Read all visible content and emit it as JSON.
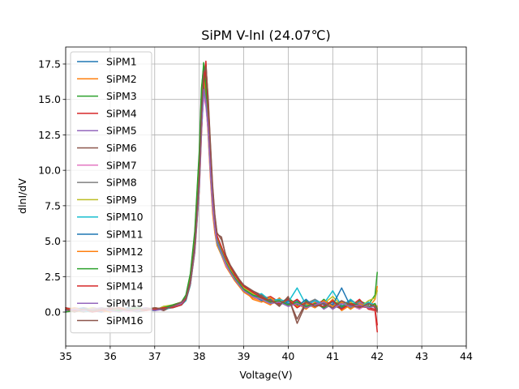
{
  "chart_data": {
    "type": "line",
    "title": "SiPM V-lnI (24.07℃)",
    "xlabel": "Voltage(V)",
    "ylabel": "dlnI/dV",
    "xlim": [
      35,
      44
    ],
    "ylim": [
      -2.4,
      18.7
    ],
    "xticks": [
      35,
      36,
      37,
      38,
      39,
      40,
      41,
      42,
      43,
      44
    ],
    "yticks": [
      0.0,
      2.5,
      5.0,
      7.5,
      10.0,
      12.5,
      15.0,
      17.5
    ],
    "xtick_labels": [
      "35",
      "36",
      "37",
      "38",
      "39",
      "40",
      "41",
      "42",
      "43",
      "44"
    ],
    "ytick_labels": [
      "0.0",
      "2.5",
      "5.0",
      "7.5",
      "10.0",
      "12.5",
      "15.0",
      "17.5"
    ],
    "grid": true,
    "legend_position": "upper-left",
    "x": [
      35.0,
      35.2,
      35.4,
      35.6,
      35.8,
      36.0,
      36.2,
      36.4,
      36.6,
      36.8,
      37.0,
      37.2,
      37.4,
      37.6,
      37.7,
      37.8,
      37.9,
      38.0,
      38.05,
      38.1,
      38.15,
      38.2,
      38.25,
      38.3,
      38.35,
      38.4,
      38.5,
      38.6,
      38.7,
      38.8,
      38.9,
      39.0,
      39.2,
      39.4,
      39.6,
      39.8,
      40.0,
      40.2,
      40.4,
      40.6,
      40.8,
      41.0,
      41.2,
      41.4,
      41.6,
      41.8,
      41.95,
      42.0
    ],
    "series": [
      {
        "name": "SiPM1",
        "color": "#1f77b4",
        "values": [
          0.1,
          0.0,
          0.2,
          0.1,
          0.2,
          0.1,
          0.2,
          0.3,
          0.1,
          0.2,
          0.2,
          0.3,
          0.4,
          0.6,
          0.9,
          2.0,
          4.5,
          9.0,
          13.5,
          16.8,
          15.5,
          13.0,
          10.0,
          7.5,
          6.0,
          5.0,
          4.2,
          3.5,
          3.0,
          2.4,
          2.0,
          1.6,
          1.2,
          1.0,
          0.7,
          0.9,
          0.6,
          0.8,
          0.4,
          0.9,
          0.5,
          0.7,
          0.3,
          0.8,
          0.5,
          0.6,
          0.4,
          0.1
        ]
      },
      {
        "name": "SiPM2",
        "color": "#ff7f0e",
        "values": [
          0.3,
          0.1,
          0.0,
          0.2,
          0.1,
          0.3,
          0.1,
          0.2,
          0.2,
          0.1,
          0.3,
          0.2,
          0.5,
          0.7,
          1.0,
          2.3,
          5.0,
          10.0,
          14.5,
          17.2,
          15.0,
          12.5,
          9.5,
          7.0,
          5.6,
          4.7,
          4.0,
          3.2,
          2.7,
          2.2,
          1.8,
          1.4,
          1.0,
          0.8,
          0.5,
          1.0,
          0.4,
          0.6,
          0.2,
          0.7,
          0.3,
          0.9,
          0.1,
          0.5,
          0.7,
          0.3,
          0.9,
          1.8
        ]
      },
      {
        "name": "SiPM3",
        "color": "#2ca02c",
        "values": [
          0.0,
          0.2,
          0.1,
          0.0,
          0.3,
          0.2,
          0.1,
          0.1,
          0.3,
          0.2,
          0.1,
          0.4,
          0.3,
          0.5,
          1.1,
          2.6,
          5.5,
          11.0,
          15.5,
          17.6,
          16.0,
          13.5,
          10.5,
          8.0,
          6.2,
          5.2,
          4.4,
          3.6,
          2.9,
          2.5,
          2.1,
          1.7,
          1.3,
          1.1,
          0.8,
          0.6,
          1.0,
          0.5,
          0.8,
          0.3,
          0.9,
          0.4,
          0.7,
          0.2,
          0.8,
          0.5,
          1.2,
          2.8
        ]
      },
      {
        "name": "SiPM4",
        "color": "#d62728",
        "values": [
          0.2,
          0.1,
          0.3,
          0.2,
          0.0,
          0.1,
          0.3,
          0.2,
          0.1,
          0.3,
          0.2,
          0.2,
          0.4,
          0.6,
          0.8,
          1.9,
          4.2,
          8.5,
          12.5,
          15.8,
          17.0,
          14.0,
          11.0,
          8.2,
          6.4,
          5.3,
          4.5,
          3.7,
          3.1,
          2.6,
          2.2,
          1.8,
          1.4,
          0.9,
          1.1,
          0.7,
          0.5,
          0.9,
          0.3,
          0.6,
          0.8,
          0.2,
          0.7,
          0.4,
          0.9,
          0.2,
          0.1,
          -1.4
        ]
      },
      {
        "name": "SiPM5",
        "color": "#9467bd",
        "values": [
          0.1,
          0.3,
          0.2,
          0.1,
          0.2,
          0.0,
          0.2,
          0.1,
          0.2,
          0.3,
          0.1,
          0.3,
          0.3,
          0.7,
          1.0,
          2.1,
          4.6,
          9.2,
          13.0,
          15.5,
          14.8,
          13.2,
          10.2,
          7.8,
          6.1,
          5.1,
          4.3,
          3.4,
          2.8,
          2.3,
          1.9,
          1.5,
          1.1,
          0.9,
          0.6,
          0.8,
          0.5,
          0.7,
          0.4,
          0.8,
          0.2,
          0.6,
          0.5,
          0.3,
          0.7,
          0.4,
          0.6,
          0.3
        ]
      },
      {
        "name": "SiPM6",
        "color": "#8c564b",
        "values": [
          0.2,
          0.2,
          0.1,
          0.3,
          0.2,
          0.2,
          0.0,
          0.3,
          0.2,
          0.1,
          0.3,
          0.1,
          0.4,
          0.5,
          0.9,
          2.2,
          4.8,
          9.5,
          14.0,
          16.5,
          17.5,
          15.0,
          11.8,
          8.8,
          6.8,
          5.5,
          5.3,
          3.9,
          3.2,
          2.7,
          2.3,
          1.9,
          1.5,
          1.2,
          0.9,
          0.4,
          1.1,
          -0.8,
          0.6,
          0.3,
          0.8,
          0.5,
          0.2,
          0.9,
          0.4,
          0.7,
          0.3,
          0.0
        ]
      },
      {
        "name": "SiPM7",
        "color": "#e377c2",
        "values": [
          0.0,
          0.1,
          0.2,
          0.2,
          0.1,
          0.3,
          0.2,
          0.0,
          0.1,
          0.2,
          0.2,
          0.3,
          0.3,
          0.6,
          0.9,
          2.0,
          4.4,
          8.8,
          12.8,
          15.2,
          14.5,
          12.8,
          9.8,
          7.4,
          5.9,
          4.9,
          4.1,
          3.3,
          2.8,
          2.3,
          1.9,
          1.5,
          1.1,
          0.8,
          0.7,
          0.9,
          0.4,
          0.6,
          0.5,
          0.4,
          0.7,
          0.3,
          0.6,
          0.5,
          0.2,
          0.6,
          0.4,
          0.2
        ]
      },
      {
        "name": "SiPM8",
        "color": "#7f7f7f",
        "values": [
          0.3,
          0.2,
          0.0,
          0.1,
          0.3,
          0.1,
          0.2,
          0.2,
          0.0,
          0.1,
          0.3,
          0.2,
          0.4,
          0.6,
          1.0,
          2.2,
          4.7,
          9.3,
          13.6,
          16.0,
          15.2,
          13.4,
          10.4,
          7.9,
          6.1,
          5.0,
          4.2,
          3.5,
          2.9,
          2.4,
          2.0,
          1.6,
          1.2,
          1.0,
          0.6,
          0.7,
          0.8,
          0.4,
          0.6,
          0.9,
          0.3,
          0.5,
          0.8,
          0.3,
          0.6,
          0.4,
          0.5,
          0.2
        ]
      },
      {
        "name": "SiPM9",
        "color": "#bcbd22",
        "values": [
          0.1,
          0.0,
          0.2,
          0.3,
          0.1,
          0.2,
          0.3,
          0.1,
          0.2,
          0.2,
          0.1,
          0.4,
          0.5,
          0.7,
          1.1,
          2.4,
          5.1,
          10.2,
          14.8,
          16.9,
          15.6,
          13.6,
          10.6,
          8.1,
          6.3,
          5.2,
          4.4,
          3.6,
          3.0,
          2.5,
          2.0,
          1.7,
          1.3,
          0.9,
          1.0,
          0.6,
          0.9,
          0.3,
          0.7,
          0.5,
          0.6,
          1.1,
          0.4,
          0.7,
          0.3,
          0.8,
          1.0,
          1.5
        ]
      },
      {
        "name": "SiPM10",
        "color": "#17becf",
        "values": [
          0.2,
          0.1,
          0.1,
          0.0,
          0.2,
          0.3,
          0.1,
          0.2,
          0.3,
          0.1,
          0.2,
          0.2,
          0.3,
          0.5,
          0.8,
          1.9,
          4.3,
          8.7,
          12.9,
          15.6,
          14.9,
          13.1,
          10.1,
          7.7,
          6.0,
          4.9,
          4.1,
          3.4,
          2.8,
          2.3,
          1.9,
          1.5,
          1.1,
          1.3,
          0.8,
          0.9,
          0.7,
          1.7,
          0.5,
          0.8,
          0.6,
          1.5,
          0.4,
          0.9,
          0.3,
          0.7,
          0.5,
          0.4
        ]
      },
      {
        "name": "SiPM11",
        "color": "#1f77b4",
        "values": [
          0.1,
          0.2,
          0.3,
          0.1,
          0.0,
          0.2,
          0.2,
          0.3,
          0.1,
          0.2,
          0.1,
          0.3,
          0.4,
          0.6,
          0.9,
          2.1,
          4.6,
          9.1,
          13.3,
          15.9,
          15.0,
          13.2,
          10.3,
          7.8,
          6.1,
          5.0,
          4.2,
          3.5,
          2.9,
          2.4,
          2.0,
          1.6,
          1.2,
          0.8,
          0.9,
          0.5,
          0.8,
          0.4,
          0.9,
          0.3,
          0.7,
          0.5,
          1.7,
          0.4,
          0.6,
          0.3,
          0.5,
          0.2
        ]
      },
      {
        "name": "SiPM12",
        "color": "#ff7f0e",
        "values": [
          0.2,
          0.3,
          0.1,
          0.2,
          0.1,
          0.0,
          0.3,
          0.2,
          0.2,
          0.1,
          0.3,
          0.2,
          0.4,
          0.6,
          1.0,
          2.3,
          4.9,
          9.7,
          14.2,
          16.6,
          15.4,
          13.3,
          10.3,
          7.9,
          6.2,
          5.1,
          4.3,
          3.5,
          2.9,
          2.4,
          2.0,
          1.6,
          0.9,
          0.7,
          1.0,
          0.5,
          0.9,
          0.4,
          0.6,
          0.3,
          0.8,
          0.4,
          0.7,
          0.2,
          0.6,
          0.3,
          0.5,
          0.4
        ]
      },
      {
        "name": "SiPM13",
        "color": "#2ca02c",
        "values": [
          0.0,
          0.1,
          0.2,
          0.1,
          0.2,
          0.1,
          0.1,
          0.2,
          0.3,
          0.2,
          0.2,
          0.3,
          0.5,
          0.7,
          1.2,
          2.7,
          5.7,
          11.3,
          15.8,
          17.3,
          15.8,
          13.3,
          10.3,
          7.9,
          6.1,
          5.1,
          4.3,
          3.5,
          2.9,
          2.4,
          2.0,
          1.6,
          1.2,
          1.0,
          0.7,
          0.8,
          0.5,
          0.7,
          0.4,
          0.6,
          0.3,
          0.8,
          0.4,
          0.6,
          0.5,
          0.3,
          0.6,
          0.2
        ]
      },
      {
        "name": "SiPM14",
        "color": "#d62728",
        "values": [
          0.3,
          0.1,
          0.2,
          0.0,
          0.1,
          0.2,
          0.3,
          0.1,
          0.2,
          0.1,
          0.2,
          0.3,
          0.3,
          0.5,
          0.9,
          2.0,
          4.4,
          8.9,
          13.1,
          16.2,
          17.7,
          14.6,
          11.4,
          8.5,
          6.6,
          5.4,
          4.6,
          3.8,
          3.2,
          2.6,
          2.2,
          1.8,
          1.4,
          1.0,
          0.8,
          0.6,
          0.9,
          0.3,
          0.7,
          0.5,
          0.4,
          0.8,
          0.2,
          0.6,
          0.4,
          0.3,
          0.2,
          -0.9
        ]
      },
      {
        "name": "SiPM15",
        "color": "#9467bd",
        "values": [
          0.1,
          0.2,
          0.1,
          0.2,
          0.3,
          0.1,
          0.0,
          0.2,
          0.1,
          0.3,
          0.1,
          0.2,
          0.4,
          0.6,
          1.0,
          2.1,
          4.5,
          9.0,
          13.2,
          15.7,
          14.9,
          13.1,
          10.1,
          7.7,
          6.0,
          5.0,
          4.2,
          3.4,
          2.8,
          2.3,
          1.9,
          1.5,
          1.1,
          0.9,
          0.6,
          0.7,
          0.4,
          0.6,
          0.3,
          0.5,
          0.7,
          0.2,
          0.6,
          0.4,
          0.5,
          0.3,
          0.4,
          0.1
        ]
      },
      {
        "name": "SiPM16",
        "color": "#8c564b",
        "values": [
          0.2,
          0.0,
          0.2,
          0.1,
          0.2,
          0.3,
          0.2,
          0.1,
          0.2,
          0.2,
          0.3,
          0.2,
          0.4,
          0.7,
          1.0,
          2.2,
          4.8,
          9.6,
          14.1,
          16.9,
          17.3,
          15.2,
          12.0,
          9.0,
          6.9,
          5.6,
          5.1,
          4.0,
          3.3,
          2.8,
          2.3,
          1.9,
          1.5,
          1.1,
          0.8,
          0.5,
          1.0,
          -0.5,
          0.7,
          0.4,
          0.6,
          0.3,
          0.8,
          0.5,
          0.3,
          0.6,
          0.4,
          0.1
        ]
      }
    ]
  }
}
